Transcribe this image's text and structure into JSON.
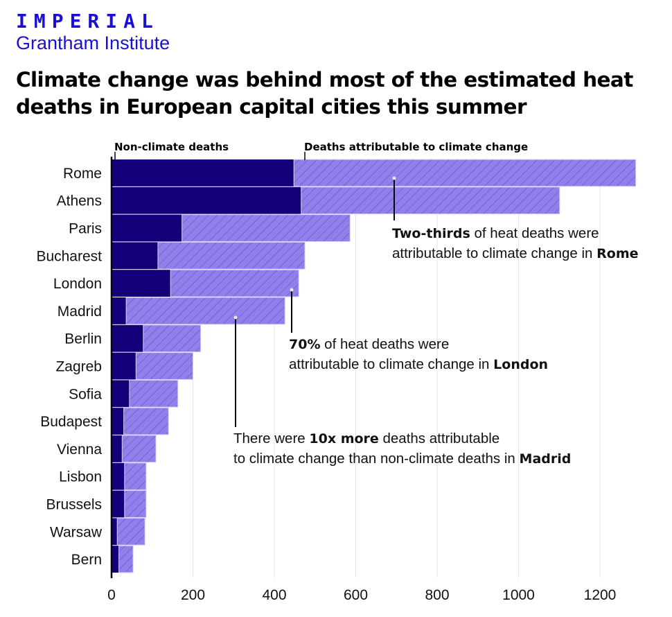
{
  "header": {
    "logo": "IMPERIAL",
    "subtitle": "Grantham Institute",
    "title": "Climate change was behind most of the estimated heat deaths in European capital cities this summer"
  },
  "colors": {
    "non_climate": "#140078",
    "climate": "#8f80ea",
    "hatch": "#6553c9",
    "brand": "#1a0fd6"
  },
  "chart_data": {
    "type": "bar",
    "orientation": "horizontal",
    "stacked": true,
    "title": "Climate change was behind most of the estimated heat deaths in European capital cities this summer",
    "categories": [
      "Rome",
      "Athens",
      "Paris",
      "Bucharest",
      "London",
      "Madrid",
      "Berlin",
      "Zagreb",
      "Sofia",
      "Budapest",
      "Vienna",
      "Lisbon",
      "Brussels",
      "Warsaw",
      "Bern"
    ],
    "series": [
      {
        "name": "Non-climate deaths",
        "values": [
          448,
          466,
          173,
          114,
          145,
          36,
          78,
          60,
          44,
          30,
          26,
          32,
          32,
          14,
          18
        ]
      },
      {
        "name": "Deaths attributable to climate change",
        "values": [
          840,
          635,
          413,
          361,
          315,
          390,
          141,
          140,
          119,
          110,
          83,
          53,
          53,
          68,
          35
        ]
      }
    ],
    "xlim": [
      0,
      1280
    ],
    "xticks": [
      "0",
      "200",
      "400",
      "600",
      "800",
      "1000",
      "1200"
    ],
    "grid": "vertical",
    "legend": "top (direct labels)",
    "annotations": [
      {
        "category": "Rome",
        "parts": [
          {
            "t": "Two-thirds",
            "b": true
          },
          {
            "t": " of heat deaths were",
            "b": false
          }
        ],
        "parts2": [
          {
            "t": "attributable to climate change in ",
            "b": false
          },
          {
            "t": "Rome",
            "b": true
          }
        ]
      },
      {
        "category": "London",
        "parts": [
          {
            "t": "70%",
            "b": true
          },
          {
            "t": " of heat deaths were",
            "b": false
          }
        ],
        "parts2": [
          {
            "t": "attributable to climate change in ",
            "b": false
          },
          {
            "t": "London",
            "b": true
          }
        ]
      },
      {
        "category": "Madrid",
        "parts": [
          {
            "t": "There were ",
            "b": false
          },
          {
            "t": "10x more",
            "b": true
          },
          {
            "t": " deaths attributable",
            "b": false
          }
        ],
        "parts2": [
          {
            "t": "to climate change than non-climate deaths in ",
            "b": false
          },
          {
            "t": "Madrid",
            "b": true
          }
        ]
      }
    ]
  }
}
